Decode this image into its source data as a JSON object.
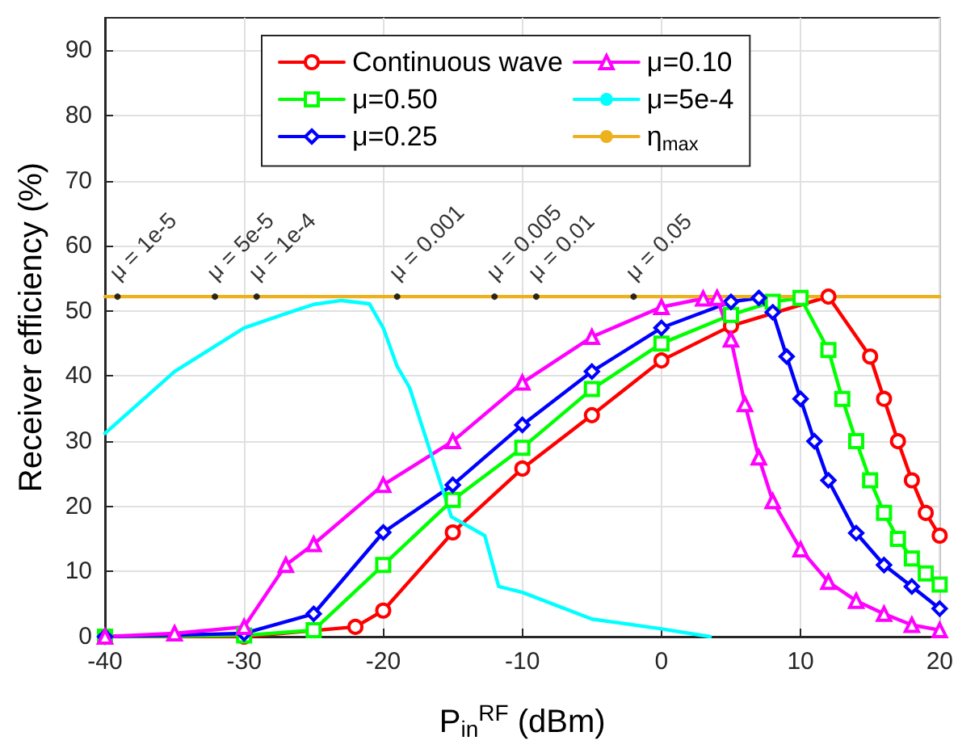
{
  "chart_data": {
    "type": "line",
    "xlabel": "P$_{in}$$^{RF}$ (dBm)",
    "ylabel": "Receiver efficiency (%)",
    "xlim": [
      -40,
      20
    ],
    "xticks": [
      -40,
      -30,
      -20,
      -10,
      0,
      10,
      20
    ],
    "ylim": [
      0,
      95
    ],
    "yticks": [
      0,
      10,
      20,
      30,
      40,
      50,
      60,
      70,
      80,
      90
    ],
    "grid": true,
    "legend": "top",
    "line_style": "solid",
    "series": [
      {
        "name": "Continuous wave",
        "color": "#ff0000",
        "marker": "circle",
        "x": [
          -40,
          -30,
          -22,
          -20,
          -15,
          -10,
          -5,
          0,
          5,
          12,
          15,
          16,
          17,
          18,
          19,
          20
        ],
        "values": [
          0,
          0,
          1.5,
          4,
          16,
          25.8,
          34,
          42.4,
          47.7,
          52.2,
          43,
          36.5,
          30,
          24,
          19,
          15.5
        ]
      },
      {
        "name": "μ=0.50",
        "color": "#00ff00",
        "marker": "square",
        "x": [
          -40,
          -30,
          -25,
          -20,
          -15,
          -10,
          -5,
          0,
          5,
          8,
          10,
          12,
          13,
          14,
          15,
          16,
          17,
          18,
          19,
          20
        ],
        "values": [
          0,
          0.2,
          1,
          11,
          21,
          29,
          38,
          45,
          49.4,
          51.4,
          52,
          44,
          36.5,
          30,
          24,
          19,
          15,
          12,
          9.7,
          8
        ]
      },
      {
        "name": "μ=0.25",
        "color": "#0000ff",
        "marker": "diamond",
        "x": [
          -40,
          -30,
          -25,
          -20,
          -15,
          -10,
          -5,
          0,
          5,
          7,
          8,
          9,
          10,
          11,
          12,
          14,
          16,
          18,
          20
        ],
        "values": [
          0,
          0.5,
          3.5,
          16,
          23.3,
          32.5,
          40.7,
          47.4,
          51.4,
          52,
          49.8,
          43,
          36.5,
          30,
          24,
          15.9,
          11,
          7.7,
          4.3
        ]
      },
      {
        "name": "μ=0.10",
        "color": "#ff00ff",
        "marker": "triangle",
        "x": [
          -40,
          -35,
          -30,
          -27,
          -25,
          -20,
          -15,
          -10,
          -5,
          0,
          3,
          4,
          5,
          6,
          7,
          8,
          10,
          12,
          14,
          16,
          18,
          20
        ],
        "values": [
          0,
          0.5,
          1.5,
          11,
          14.2,
          23.3,
          30,
          39,
          46,
          50.6,
          51.9,
          52,
          45.6,
          35.7,
          27.5,
          20.8,
          13.4,
          8.4,
          5.5,
          3.5,
          1.8,
          1
        ]
      },
      {
        "name": "μ=5e-4",
        "color": "#00ffff",
        "marker": "none",
        "x": [
          -40,
          -35,
          -30,
          -27,
          -25,
          -23,
          -21,
          -20,
          -19,
          -18.1,
          -15.1,
          -12.7,
          -11.7,
          -10,
          -5,
          0,
          3.5
        ],
        "values": [
          31.2,
          40.7,
          47.4,
          49.6,
          51,
          51.6,
          51.1,
          47.4,
          41.5,
          38.2,
          18.4,
          15.5,
          7.7,
          6.8,
          2.7,
          1.2,
          0
        ]
      },
      {
        "name": "η$_{max}$",
        "color": "#edb120",
        "marker": "none",
        "x": [
          -40,
          20
        ],
        "values": [
          52.2,
          52.2
        ]
      }
    ],
    "annotations": [
      {
        "text": "μ = 1e-5",
        "x": -39.1,
        "y": 52.2
      },
      {
        "text": "μ = 5e-5",
        "x": -32.1,
        "y": 52.2
      },
      {
        "text": "μ = 1e-4",
        "x": -29.1,
        "y": 52.2
      },
      {
        "text": "μ = 0.001",
        "x": -19,
        "y": 52.2
      },
      {
        "text": "μ = 0.005",
        "x": -12,
        "y": 52.2
      },
      {
        "text": "μ = 0.01",
        "x": -9,
        "y": 52.2
      },
      {
        "text": "μ = 0.05",
        "x": -2,
        "y": 52.2
      }
    ]
  }
}
